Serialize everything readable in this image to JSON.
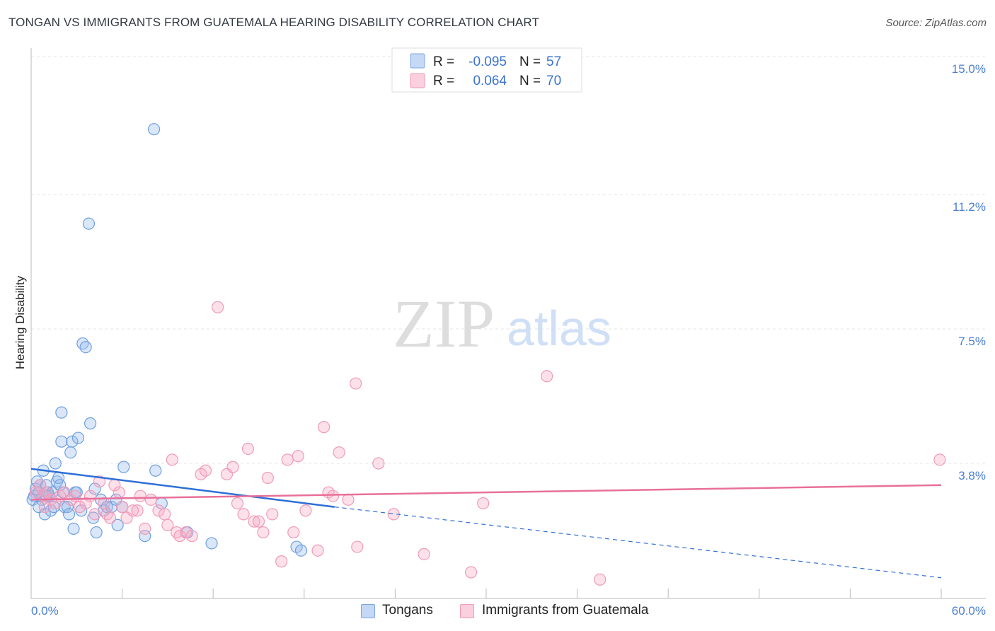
{
  "header": {
    "title": "TONGAN VS IMMIGRANTS FROM GUATEMALA HEARING DISABILITY CORRELATION CHART",
    "source": "Source: ZipAtlas.com"
  },
  "watermark": {
    "zip": "ZIP",
    "atlas": "atlas"
  },
  "chart_data": {
    "type": "scatter",
    "title": "TONGAN VS IMMIGRANTS FROM GUATEMALA HEARING DISABILITY CORRELATION CHART",
    "xlabel": "",
    "ylabel": "Hearing Disability",
    "xlim": [
      0,
      60
    ],
    "ylim": [
      0.4,
      15.8
    ],
    "x_tick_labels": [
      "0.0%",
      "60.0%"
    ],
    "y_ticks": [
      3.8,
      7.5,
      11.2,
      15.0
    ],
    "y_tick_labels": [
      "3.8%",
      "7.5%",
      "11.2%",
      "15.0%"
    ],
    "grid": true,
    "legend": {
      "position": "top-center",
      "entries": [
        {
          "r_label": "R =",
          "r_value": "-0.095",
          "n_label": "N =",
          "n_value": "57"
        },
        {
          "r_label": "R =",
          "r_value": "0.064",
          "n_label": "N =",
          "n_value": "70"
        }
      ]
    },
    "series": [
      {
        "name": "Tongans",
        "color": "#6f9fe0",
        "line_color": "#2e6fd6",
        "trend": {
          "x0": 0,
          "y0": 3.65,
          "x1": 20,
          "y1": 2.6,
          "dash_to_x": 60,
          "dash_to_y": 0.65
        },
        "points": [
          [
            0.2,
            2.9
          ],
          [
            0.3,
            3.1
          ],
          [
            0.4,
            3.3
          ],
          [
            0.5,
            3.0
          ],
          [
            0.6,
            3.2
          ],
          [
            0.7,
            2.8
          ],
          [
            0.8,
            3.6
          ],
          [
            0.9,
            2.4
          ],
          [
            1.0,
            3.2
          ],
          [
            1.1,
            3.0
          ],
          [
            1.2,
            2.9
          ],
          [
            1.3,
            2.5
          ],
          [
            1.4,
            3.0
          ],
          [
            1.5,
            2.6
          ],
          [
            1.6,
            3.8
          ],
          [
            1.7,
            3.3
          ],
          [
            1.8,
            3.4
          ],
          [
            1.9,
            3.2
          ],
          [
            2.0,
            5.2
          ],
          [
            2.0,
            4.4
          ],
          [
            2.1,
            3.0
          ],
          [
            2.2,
            2.6
          ],
          [
            2.4,
            2.6
          ],
          [
            2.5,
            2.4
          ],
          [
            2.6,
            4.1
          ],
          [
            2.7,
            4.4
          ],
          [
            2.8,
            2.0
          ],
          [
            2.9,
            3.0
          ],
          [
            3.0,
            3.0
          ],
          [
            3.1,
            4.5
          ],
          [
            3.3,
            2.5
          ],
          [
            3.4,
            7.1
          ],
          [
            3.6,
            7.0
          ],
          [
            3.8,
            10.4
          ],
          [
            3.9,
            4.9
          ],
          [
            4.1,
            2.3
          ],
          [
            4.2,
            3.1
          ],
          [
            4.3,
            1.9
          ],
          [
            4.6,
            2.8
          ],
          [
            4.8,
            2.5
          ],
          [
            5.0,
            2.6
          ],
          [
            5.3,
            2.6
          ],
          [
            5.6,
            2.8
          ],
          [
            5.7,
            2.1
          ],
          [
            6.0,
            2.6
          ],
          [
            6.1,
            3.7
          ],
          [
            7.5,
            1.8
          ],
          [
            8.1,
            13.0
          ],
          [
            8.2,
            3.6
          ],
          [
            8.6,
            2.7
          ],
          [
            10.3,
            1.9
          ],
          [
            11.9,
            1.6
          ],
          [
            17.5,
            1.5
          ],
          [
            17.8,
            1.4
          ],
          [
            0.1,
            2.8
          ],
          [
            0.5,
            2.6
          ],
          [
            1.0,
            2.9
          ]
        ]
      },
      {
        "name": "Immigrants from Guatemala",
        "color": "#f09bb8",
        "line_color": "#e8709a",
        "trend": {
          "x0": 0,
          "y0": 2.8,
          "x1": 60,
          "y1": 3.2
        },
        "points": [
          [
            0.3,
            3.0
          ],
          [
            0.6,
            3.2
          ],
          [
            0.8,
            2.9
          ],
          [
            1.0,
            3.0
          ],
          [
            1.3,
            2.8
          ],
          [
            1.6,
            2.7
          ],
          [
            1.9,
            2.9
          ],
          [
            2.2,
            3.0
          ],
          [
            2.6,
            2.8
          ],
          [
            2.9,
            2.9
          ],
          [
            3.2,
            2.6
          ],
          [
            3.6,
            2.7
          ],
          [
            3.9,
            2.9
          ],
          [
            4.2,
            2.4
          ],
          [
            4.5,
            3.3
          ],
          [
            4.8,
            2.7
          ],
          [
            5.0,
            2.4
          ],
          [
            5.2,
            2.3
          ],
          [
            5.5,
            3.2
          ],
          [
            5.8,
            3.0
          ],
          [
            6.0,
            2.6
          ],
          [
            6.3,
            2.3
          ],
          [
            6.7,
            2.5
          ],
          [
            7.0,
            2.5
          ],
          [
            7.2,
            2.9
          ],
          [
            7.5,
            2.0
          ],
          [
            7.9,
            2.8
          ],
          [
            8.4,
            2.5
          ],
          [
            8.8,
            2.4
          ],
          [
            9.0,
            2.1
          ],
          [
            9.3,
            3.9
          ],
          [
            9.6,
            1.9
          ],
          [
            9.8,
            1.8
          ],
          [
            10.2,
            1.9
          ],
          [
            10.6,
            1.8
          ],
          [
            11.2,
            3.5
          ],
          [
            11.5,
            3.6
          ],
          [
            12.3,
            8.1
          ],
          [
            12.9,
            3.5
          ],
          [
            13.3,
            3.7
          ],
          [
            13.6,
            2.7
          ],
          [
            14.0,
            2.4
          ],
          [
            14.3,
            4.2
          ],
          [
            14.7,
            2.2
          ],
          [
            15.0,
            2.2
          ],
          [
            15.3,
            1.9
          ],
          [
            15.6,
            3.4
          ],
          [
            15.9,
            2.4
          ],
          [
            16.5,
            1.1
          ],
          [
            16.9,
            3.9
          ],
          [
            17.3,
            1.9
          ],
          [
            17.6,
            4.0
          ],
          [
            18.1,
            2.5
          ],
          [
            18.9,
            1.4
          ],
          [
            19.3,
            4.8
          ],
          [
            19.6,
            3.0
          ],
          [
            19.9,
            2.9
          ],
          [
            20.3,
            4.1
          ],
          [
            20.9,
            2.8
          ],
          [
            21.4,
            6.0
          ],
          [
            21.5,
            1.5
          ],
          [
            22.9,
            3.8
          ],
          [
            23.9,
            2.4
          ],
          [
            25.9,
            1.3
          ],
          [
            29.0,
            0.8
          ],
          [
            29.8,
            2.7
          ],
          [
            34.0,
            6.2
          ],
          [
            37.5,
            0.6
          ],
          [
            59.9,
            3.9
          ],
          [
            0.9,
            2.6
          ]
        ]
      }
    ]
  }
}
